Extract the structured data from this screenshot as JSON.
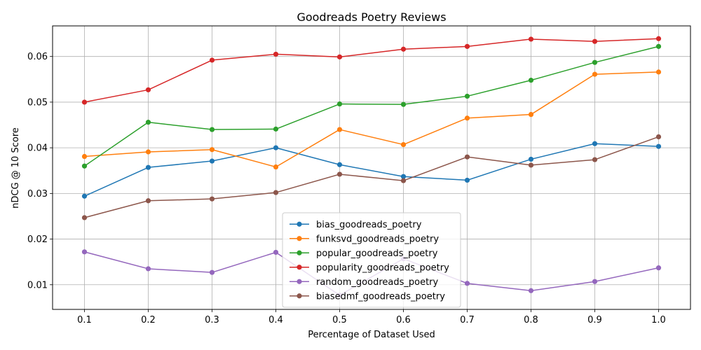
{
  "chart_data": {
    "type": "line",
    "title": "Goodreads Poetry Reviews",
    "xlabel": "Percentage of Dataset Used",
    "ylabel": "nDCG @ 10 Score",
    "grid": true,
    "legend_position": "lower-center",
    "xlim": [
      0.05,
      1.05
    ],
    "ylim": [
      0.0046,
      0.0667
    ],
    "x": [
      0.1,
      0.2,
      0.3,
      0.4,
      0.5,
      0.6,
      0.7,
      0.8,
      0.9,
      1.0
    ],
    "x_tick_labels": [
      "0.1",
      "0.2",
      "0.3",
      "0.4",
      "0.5",
      "0.6",
      "0.7",
      "0.8",
      "0.9",
      "1.0"
    ],
    "y_ticks": [
      0.01,
      0.02,
      0.03,
      0.04,
      0.05,
      0.06
    ],
    "y_tick_labels": [
      "0.01",
      "0.02",
      "0.03",
      "0.04",
      "0.05",
      "0.06"
    ],
    "series": [
      {
        "name": "bias_goodreads_poetry",
        "color": "#1f77b4",
        "values": [
          0.0294,
          0.0357,
          0.0371,
          0.04,
          0.0363,
          0.0337,
          0.0329,
          0.0375,
          0.0409,
          0.0403
        ]
      },
      {
        "name": "funksvd_goodreads_poetry",
        "color": "#ff7f0e",
        "values": [
          0.0381,
          0.0391,
          0.0396,
          0.0358,
          0.044,
          0.0407,
          0.0465,
          0.0473,
          0.0561,
          0.0566
        ]
      },
      {
        "name": "popular_goodreads_poetry",
        "color": "#2ca02c",
        "values": [
          0.036,
          0.0456,
          0.044,
          0.0441,
          0.0496,
          0.0495,
          0.0513,
          0.0548,
          0.0587,
          0.0622
        ]
      },
      {
        "name": "popularity_goodreads_poetry",
        "color": "#d62728",
        "values": [
          0.05,
          0.0527,
          0.0592,
          0.0605,
          0.0599,
          0.0616,
          0.0622,
          0.0638,
          0.0633,
          0.0639
        ]
      },
      {
        "name": "random_goodreads_poetry",
        "color": "#9467bd",
        "values": [
          0.0172,
          0.0135,
          0.0127,
          0.0171,
          0.0077,
          0.0157,
          0.0103,
          0.0087,
          0.0107,
          0.0137
        ]
      },
      {
        "name": "biasedmf_goodreads_poetry",
        "color": "#8c564b",
        "values": [
          0.0247,
          0.0284,
          0.0288,
          0.0302,
          0.0342,
          0.0328,
          0.038,
          0.0362,
          0.0374,
          0.0424
        ]
      }
    ]
  }
}
